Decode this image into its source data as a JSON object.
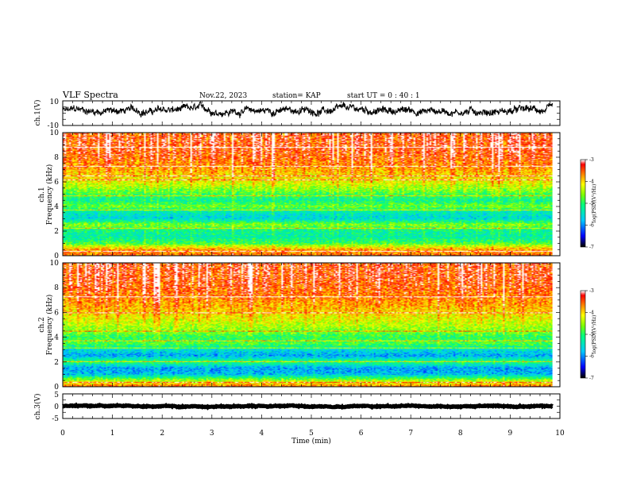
{
  "header": {
    "title": "VLF Spectra",
    "date": "Nov.22, 2023",
    "station": "station= KAP",
    "start": "start  UT =   0 : 40 : 1"
  },
  "colors": {
    "scale": [
      "#000000",
      "#0000ff",
      "#00c8ff",
      "#00ff80",
      "#80ff00",
      "#ffff00",
      "#ff8000",
      "#ff0000",
      "#ffffff"
    ]
  },
  "chart_data": [
    {
      "type": "line",
      "panel": "ch1-waveform",
      "ylabel": "ch.1(V)",
      "ylim": [
        -10,
        10
      ],
      "yticks": [
        "10",
        "-10"
      ],
      "xlim": [
        0,
        10
      ],
      "x_range_data": [
        0,
        9.85
      ],
      "level_estimate_V": 2,
      "amplitude_estimate_V": 5
    },
    {
      "type": "heatmap",
      "panel": "ch1-spectrogram",
      "ylabel": "ch.1\nFrequency  (kHz)",
      "ylim": [
        0,
        10
      ],
      "yticks": [
        "0",
        "2",
        "4",
        "6",
        "8",
        "10"
      ],
      "xlim": [
        0,
        10
      ],
      "x_range_data": [
        0,
        9.85
      ],
      "colorbar": {
        "label": "log(PSD)(V²/Hz)",
        "range": [
          -7,
          -3
        ],
        "ticks": [
          "-3",
          "-4",
          "-5",
          "-6",
          "-7"
        ]
      },
      "band_profile_kHz_logPSD": [
        [
          0,
          -3.6
        ],
        [
          0.5,
          -3.8
        ],
        [
          1.0,
          -4.9
        ],
        [
          1.5,
          -5.3
        ],
        [
          2.0,
          -5.2
        ],
        [
          2.5,
          -4.6
        ],
        [
          3.0,
          -5.6
        ],
        [
          3.5,
          -5.4
        ],
        [
          4.0,
          -4.7
        ],
        [
          4.5,
          -5.2
        ],
        [
          5.0,
          -4.9
        ],
        [
          5.5,
          -4.5
        ],
        [
          6.0,
          -4.2
        ],
        [
          7.0,
          -3.8
        ],
        [
          8.0,
          -3.5
        ],
        [
          9.0,
          -3.4
        ],
        [
          10.0,
          -3.4
        ]
      ],
      "horizontal_lines_kHz": [
        0.3,
        2.2,
        3.7,
        4.9,
        6.2,
        6.5,
        7.3,
        8.8
      ]
    },
    {
      "type": "heatmap",
      "panel": "ch2-spectrogram",
      "ylabel": "ch.2\nFrequency  (kHz)",
      "ylim": [
        0,
        10
      ],
      "yticks": [
        "0",
        "2",
        "4",
        "6",
        "8",
        "10"
      ],
      "xlim": [
        0,
        10
      ],
      "x_range_data": [
        0,
        9.85
      ],
      "colorbar": {
        "label": "log(PSD)(V²/Hz)",
        "range": [
          -7,
          -3
        ],
        "ticks": [
          "-3",
          "-4",
          "-5",
          "-6",
          "-7"
        ]
      },
      "band_profile_kHz_logPSD": [
        [
          0,
          -3.6
        ],
        [
          0.5,
          -4.5
        ],
        [
          1.0,
          -5.8
        ],
        [
          1.5,
          -5.9
        ],
        [
          2.0,
          -5.0
        ],
        [
          2.5,
          -5.9
        ],
        [
          3.0,
          -5.5
        ],
        [
          3.5,
          -4.8
        ],
        [
          4.0,
          -5.0
        ],
        [
          4.5,
          -4.6
        ],
        [
          5.0,
          -4.4
        ],
        [
          6.0,
          -4.0
        ],
        [
          7.0,
          -3.7
        ],
        [
          8.0,
          -3.5
        ],
        [
          9.0,
          -3.4
        ],
        [
          10.0,
          -3.4
        ]
      ],
      "horizontal_lines_kHz": [
        0.3,
        2.0,
        3.1,
        3.7,
        4.5,
        6.0,
        7.3
      ]
    },
    {
      "type": "line",
      "panel": "ch3-waveform",
      "ylabel": "ch.3(V)",
      "ylim": [
        -5,
        5
      ],
      "yticks": [
        "5",
        "0",
        "-5"
      ],
      "xlim": [
        0,
        10
      ],
      "x_range_data": [
        0,
        9.85
      ],
      "level_estimate_V": 0,
      "amplitude_estimate_V": 0.4
    }
  ],
  "xaxis": {
    "label": "Time  (min)",
    "ticks": [
      "0",
      "1",
      "2",
      "3",
      "4",
      "5",
      "6",
      "7",
      "8",
      "9",
      "10"
    ]
  }
}
